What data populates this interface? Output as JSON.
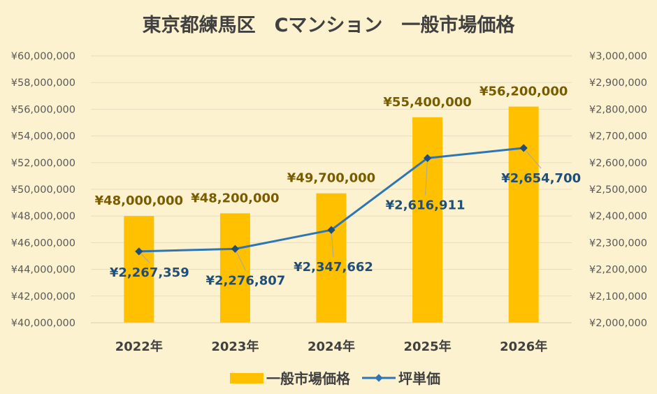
{
  "chart_data": {
    "type": "bar",
    "title": "東京都練馬区　Cマンション　一般市場価格",
    "categories": [
      "2022年",
      "2023年",
      "2024年",
      "2025年",
      "2026年"
    ],
    "series": [
      {
        "name": "一般市場価格",
        "type": "bar",
        "axis": "left",
        "color": "#ffc000",
        "values": [
          48000000,
          48200000,
          49700000,
          55400000,
          56200000
        ],
        "labels": [
          "¥48,000,000",
          "¥48,200,000",
          "¥49,700,000",
          "¥55,400,000",
          "¥56,200,000"
        ]
      },
      {
        "name": "坪単価",
        "type": "line",
        "axis": "right",
        "color": "#2e75b6",
        "values": [
          2267359,
          2276807,
          2347662,
          2616911,
          2654700
        ],
        "labels": [
          "¥2,267,359",
          "¥2,276,807",
          "¥2,347,662",
          "¥2,616,911",
          "¥2,654,700"
        ]
      }
    ],
    "y_left": {
      "ylim": [
        40000000,
        60000000
      ],
      "ticks": [
        40000000,
        42000000,
        44000000,
        46000000,
        48000000,
        50000000,
        52000000,
        54000000,
        56000000,
        58000000,
        60000000
      ],
      "tick_labels": [
        "¥40,000,000",
        "¥42,000,000",
        "¥44,000,000",
        "¥46,000,000",
        "¥48,000,000",
        "¥50,000,000",
        "¥52,000,000",
        "¥54,000,000",
        "¥56,000,000",
        "¥58,000,000",
        "¥60,000,000"
      ]
    },
    "y_right": {
      "ylim": [
        2000000,
        3000000
      ],
      "ticks": [
        2000000,
        2100000,
        2200000,
        2300000,
        2400000,
        2500000,
        2600000,
        2700000,
        2800000,
        2900000,
        3000000
      ],
      "tick_labels": [
        "¥2,000,000",
        "¥2,100,000",
        "¥2,200,000",
        "¥2,300,000",
        "¥2,400,000",
        "¥2,500,000",
        "¥2,600,000",
        "¥2,700,000",
        "¥2,800,000",
        "¥2,900,000",
        "¥3,000,000"
      ]
    },
    "grid": true,
    "legend_position": "bottom",
    "background": "#fdf2cf"
  }
}
